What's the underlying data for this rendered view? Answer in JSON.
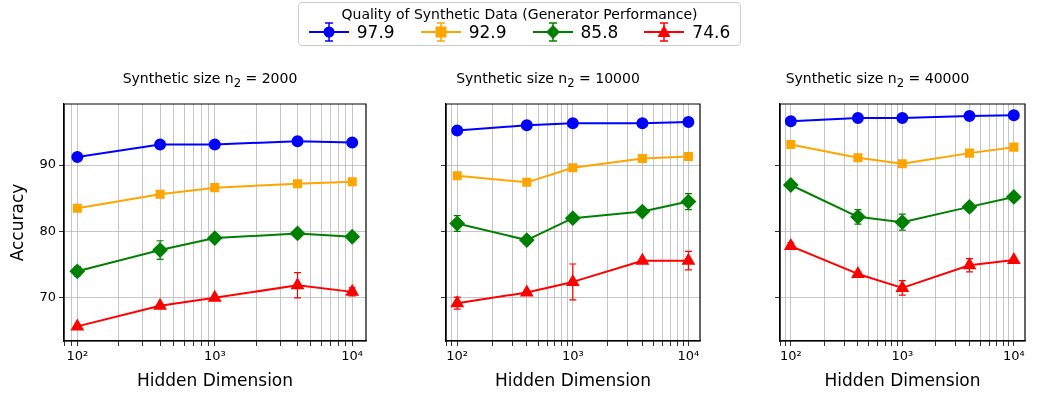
{
  "chart_data": [
    {
      "type": "line",
      "title": "Synthetic size n$_{2}$ = 2000",
      "xlabel": "Hidden Dimension",
      "ylabel": "Accuracy",
      "legend_title": "Quality of Synthetic Data (Generator Performance)",
      "legend": "top",
      "grid": true,
      "log": "x",
      "line_style": "solid",
      "x": [
        100,
        400,
        1000,
        4000,
        10000
      ],
      "xlim": [
        80,
        12600
      ],
      "xticks": [
        {
          "value": 80,
          "label": null
        },
        {
          "value": 90,
          "label": null
        },
        {
          "value": 100,
          "label": "10²"
        },
        {
          "value": 200,
          "label": null
        },
        {
          "value": 300,
          "label": null
        },
        {
          "value": 400,
          "label": null
        },
        {
          "value": 500,
          "label": null
        },
        {
          "value": 600,
          "label": null
        },
        {
          "value": 700,
          "label": null
        },
        {
          "value": 800,
          "label": null
        },
        {
          "value": 900,
          "label": null
        },
        {
          "value": 1000,
          "label": "10³"
        },
        {
          "value": 2000,
          "label": null
        },
        {
          "value": 3000,
          "label": null
        },
        {
          "value": 4000,
          "label": null
        },
        {
          "value": 5000,
          "label": null
        },
        {
          "value": 6000,
          "label": null
        },
        {
          "value": 7000,
          "label": null
        },
        {
          "value": 8000,
          "label": null
        },
        {
          "value": 9000,
          "label": null
        },
        {
          "value": 10000,
          "label": "10⁴"
        }
      ],
      "ylim": [
        63.5,
        99.2
      ],
      "yticks": [
        70,
        80,
        90
      ],
      "series": [
        {
          "name": "97.9",
          "color": "#0000ff",
          "marker": "circle",
          "values": [
            91.2,
            93.1,
            93.1,
            93.6,
            93.4
          ],
          "errors": [
            null,
            null,
            null,
            null,
            null
          ]
        },
        {
          "name": "92.9",
          "color": "#ffa500",
          "marker": "square",
          "values": [
            83.5,
            85.6,
            86.6,
            87.2,
            87.5
          ],
          "errors": [
            null,
            null,
            null,
            null,
            null
          ]
        },
        {
          "name": "85.8",
          "color": "#008000",
          "marker": "diamond",
          "values": [
            74.0,
            77.2,
            79.0,
            79.7,
            79.2
          ],
          "errors": [
            0.7,
            1.4,
            null,
            null,
            null
          ]
        },
        {
          "name": "74.6",
          "color": "#ff0000",
          "marker": "triangle",
          "values": [
            65.7,
            68.8,
            70.0,
            71.9,
            70.9
          ],
          "errors": [
            null,
            null,
            null,
            1.9,
            0.6
          ]
        }
      ]
    },
    {
      "type": "line",
      "title": "Synthetic size n$_{2}$ = 10000",
      "xlabel": "Hidden Dimension",
      "grid": true,
      "log": "x",
      "line_style": "solid",
      "tick_labels": "x",
      "x": [
        100,
        400,
        1000,
        4000,
        10000
      ],
      "xlim": [
        80,
        12600
      ],
      "xticks": [
        {
          "value": 80,
          "label": null
        },
        {
          "value": 90,
          "label": null
        },
        {
          "value": 100,
          "label": "10²"
        },
        {
          "value": 200,
          "label": null
        },
        {
          "value": 300,
          "label": null
        },
        {
          "value": 400,
          "label": null
        },
        {
          "value": 500,
          "label": null
        },
        {
          "value": 600,
          "label": null
        },
        {
          "value": 700,
          "label": null
        },
        {
          "value": 800,
          "label": null
        },
        {
          "value": 900,
          "label": null
        },
        {
          "value": 1000,
          "label": "10³"
        },
        {
          "value": 2000,
          "label": null
        },
        {
          "value": 3000,
          "label": null
        },
        {
          "value": 4000,
          "label": null
        },
        {
          "value": 5000,
          "label": null
        },
        {
          "value": 6000,
          "label": null
        },
        {
          "value": 7000,
          "label": null
        },
        {
          "value": 8000,
          "label": null
        },
        {
          "value": 9000,
          "label": null
        },
        {
          "value": 10000,
          "label": "10⁴"
        }
      ],
      "ylim": [
        63.5,
        99.2
      ],
      "yticks": [
        70,
        80,
        90
      ],
      "series": [
        {
          "name": "97.9",
          "color": "#0000ff",
          "marker": "circle",
          "values": [
            95.2,
            96.0,
            96.3,
            96.3,
            96.5
          ],
          "errors": [
            null,
            null,
            null,
            null,
            null
          ]
        },
        {
          "name": "92.9",
          "color": "#ffa500",
          "marker": "square",
          "values": [
            88.4,
            87.4,
            89.6,
            91.0,
            91.3
          ],
          "errors": [
            null,
            null,
            null,
            null,
            null
          ]
        },
        {
          "name": "85.8",
          "color": "#008000",
          "marker": "diamond",
          "values": [
            81.2,
            78.7,
            82.0,
            83.0,
            84.5
          ],
          "errors": [
            1.2,
            null,
            null,
            null,
            1.2
          ]
        },
        {
          "name": "74.6",
          "color": "#ff0000",
          "marker": "triangle",
          "values": [
            69.2,
            70.8,
            72.4,
            75.6,
            75.6
          ],
          "errors": [
            0.9,
            null,
            2.7,
            null,
            1.4
          ]
        }
      ]
    },
    {
      "type": "line",
      "title": "Synthetic size n$_{2}$ = 40000",
      "xlabel": "Hidden Dimension",
      "grid": true,
      "log": "x",
      "line_style": "solid",
      "tick_labels": "x",
      "x": [
        100,
        400,
        1000,
        4000,
        10000
      ],
      "xlim": [
        80,
        12600
      ],
      "xticks": [
        {
          "value": 80,
          "label": null
        },
        {
          "value": 90,
          "label": null
        },
        {
          "value": 100,
          "label": "10²"
        },
        {
          "value": 200,
          "label": null
        },
        {
          "value": 300,
          "label": null
        },
        {
          "value": 400,
          "label": null
        },
        {
          "value": 500,
          "label": null
        },
        {
          "value": 600,
          "label": null
        },
        {
          "value": 700,
          "label": null
        },
        {
          "value": 800,
          "label": null
        },
        {
          "value": 900,
          "label": null
        },
        {
          "value": 1000,
          "label": "10³"
        },
        {
          "value": 2000,
          "label": null
        },
        {
          "value": 3000,
          "label": null
        },
        {
          "value": 4000,
          "label": null
        },
        {
          "value": 5000,
          "label": null
        },
        {
          "value": 6000,
          "label": null
        },
        {
          "value": 7000,
          "label": null
        },
        {
          "value": 8000,
          "label": null
        },
        {
          "value": 9000,
          "label": null
        },
        {
          "value": 10000,
          "label": "10⁴"
        }
      ],
      "ylim": [
        63.5,
        99.2
      ],
      "yticks": [
        70,
        80,
        90
      ],
      "series": [
        {
          "name": "97.9",
          "color": "#0000ff",
          "marker": "circle",
          "values": [
            96.6,
            97.1,
            97.1,
            97.4,
            97.5
          ],
          "errors": [
            null,
            null,
            null,
            null,
            null
          ]
        },
        {
          "name": "92.9",
          "color": "#ffa500",
          "marker": "square",
          "values": [
            93.1,
            91.1,
            90.2,
            91.8,
            92.7
          ],
          "errors": [
            null,
            null,
            null,
            null,
            null
          ]
        },
        {
          "name": "85.8",
          "color": "#008000",
          "marker": "diamond",
          "values": [
            87.0,
            82.2,
            81.4,
            83.7,
            85.2
          ],
          "errors": [
            null,
            1.1,
            1.2,
            0.6,
            null
          ]
        },
        {
          "name": "74.6",
          "color": "#ff0000",
          "marker": "triangle",
          "values": [
            77.8,
            73.6,
            71.5,
            74.9,
            75.7
          ],
          "errors": [
            0.5,
            null,
            1.1,
            1.0,
            null
          ]
        }
      ]
    }
  ]
}
